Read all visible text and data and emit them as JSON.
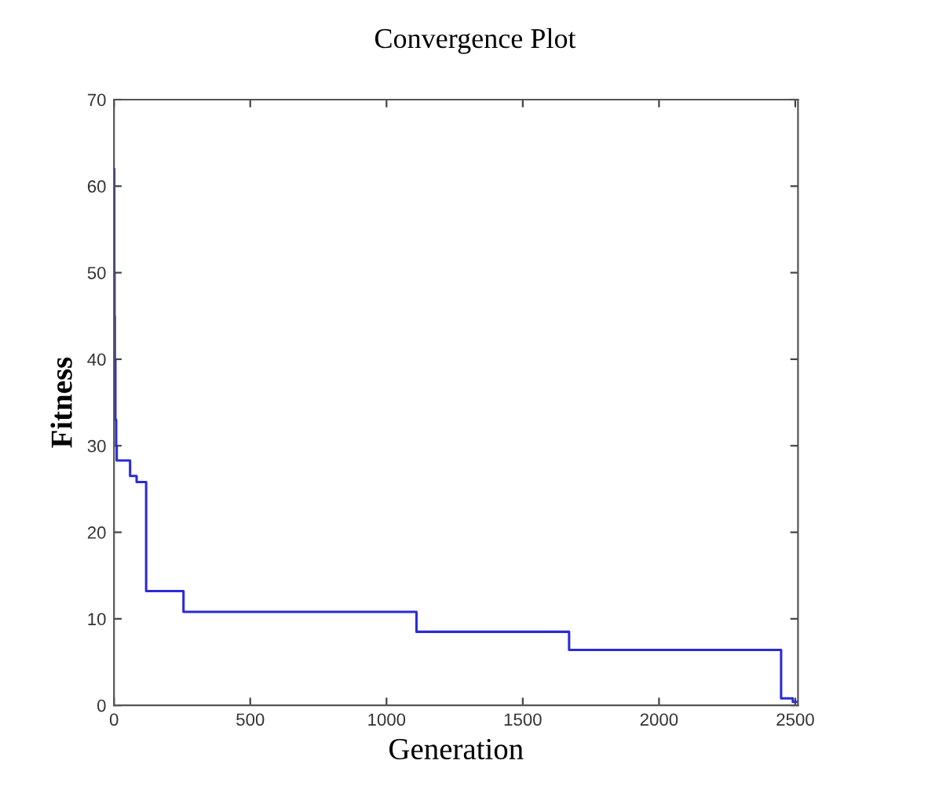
{
  "chart_data": {
    "type": "step",
    "title": "Convergence Plot",
    "xlabel": "Generation",
    "ylabel": "Fitness",
    "xlim": [
      0,
      2510
    ],
    "ylim": [
      0,
      70
    ],
    "xticks": [
      0,
      500,
      1000,
      1500,
      2000,
      2500
    ],
    "yticks": [
      0,
      10,
      20,
      30,
      40,
      50,
      60,
      70
    ],
    "grid": false,
    "legend": false,
    "series": [
      {
        "color": "#2b2bd6",
        "x": [
          0,
          1,
          2,
          3,
          5,
          8,
          10,
          59,
          83,
          107,
          118,
          243,
          255,
          1110,
          1670,
          2448,
          2491,
          2510
        ],
        "values": [
          62,
          50,
          45,
          40,
          33,
          30,
          28.3,
          26.5,
          25.8,
          25.8,
          13.2,
          13.2,
          10.8,
          8.5,
          6.4,
          0.8,
          0.4,
          0.4
        ]
      }
    ]
  }
}
